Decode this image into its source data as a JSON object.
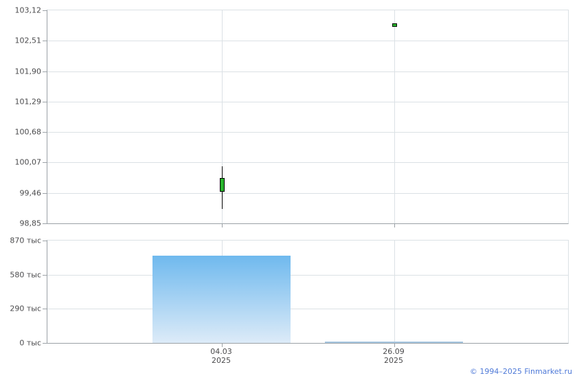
{
  "page": {
    "background": "#ffffff"
  },
  "colors": {
    "grid": "#dbe1e5",
    "axis": "#9ba1a6",
    "tick_text": "#4b4b4d",
    "candle_up_fill": "#28b42c",
    "candle_outline": "#000000",
    "footer_link": "#4f7ad8"
  },
  "footer": {
    "text": "© 1994–2025 Finmarket.ru"
  },
  "chart_data": [
    {
      "type": "candlestick",
      "title": "",
      "xlabel": "",
      "ylabel": "",
      "grid": true,
      "legend": "none",
      "ylim": [
        98.85,
        103.12
      ],
      "y_ticks": [
        {
          "value": 103.12,
          "label": "103,12"
        },
        {
          "value": 102.51,
          "label": "102,51"
        },
        {
          "value": 101.9,
          "label": "101,90"
        },
        {
          "value": 101.29,
          "label": "101,29"
        },
        {
          "value": 100.68,
          "label": "100,68"
        },
        {
          "value": 100.07,
          "label": "100,07"
        },
        {
          "value": 99.46,
          "label": "99,46"
        },
        {
          "value": 98.85,
          "label": "98,85"
        }
      ],
      "points": [
        {
          "date": "04.03.2025",
          "x_frac": 0.3347,
          "open": 99.48,
          "high": 100.0,
          "low": 99.14,
          "close": 99.76,
          "direction": "up"
        },
        {
          "date": "26.09.2025",
          "x_frac": 0.6667,
          "open": 102.79,
          "high": 102.86,
          "low": 102.79,
          "close": 102.86,
          "direction": "up"
        }
      ]
    },
    {
      "type": "bar",
      "title": "",
      "xlabel": "",
      "ylabel": "",
      "grid": true,
      "legend": "none",
      "unit": "тыс",
      "ylim": [
        0,
        870
      ],
      "y_ticks": [
        {
          "value": 870,
          "label": "870 тыс"
        },
        {
          "value": 580,
          "label": "580 тыс"
        },
        {
          "value": 290,
          "label": "290 тыс"
        },
        {
          "value": 0,
          "label": "0 тыс"
        }
      ],
      "categories": [
        {
          "line1": "04.03",
          "line2": "2025",
          "x_frac": 0.3347
        },
        {
          "line1": "26.09",
          "line2": "2025",
          "x_frac": 0.6667
        }
      ],
      "values": [
        742,
        12
      ],
      "bar_width_frac": 0.265,
      "bar_colors": [
        {
          "top": "#6fb9ee",
          "bottom": "#ddebf8"
        },
        {
          "top": "#9fc2dd",
          "bottom": "#aac9e3"
        }
      ]
    }
  ]
}
